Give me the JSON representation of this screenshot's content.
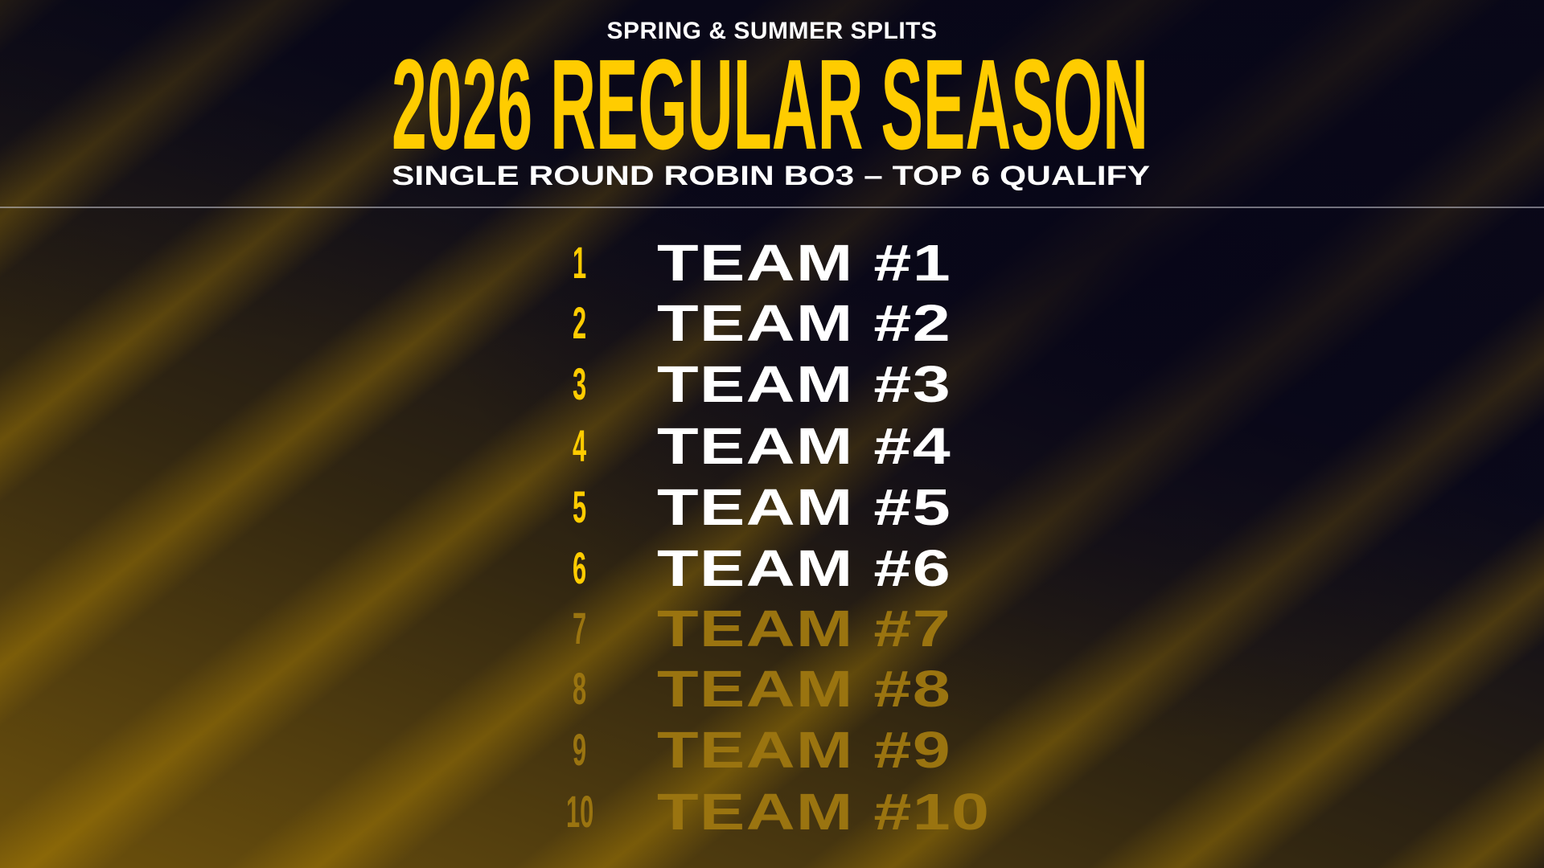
{
  "header": {
    "kicker": "SPRING & SUMMER SPLITS",
    "title": "2026 REGULAR SEASON",
    "subtitle": "SINGLE ROUND ROBIN BO3 – TOP 6 QUALIFY"
  },
  "colors": {
    "accent": "#FFCC00",
    "background": "#0B0A1A",
    "qualified_text": "#FFFFFF",
    "non_qualified_text": "#9A7410"
  },
  "standings": [
    {
      "rank": "1",
      "team": "TEAM #1",
      "qualified": true
    },
    {
      "rank": "2",
      "team": "TEAM #2",
      "qualified": true
    },
    {
      "rank": "3",
      "team": "TEAM #3",
      "qualified": true
    },
    {
      "rank": "4",
      "team": "TEAM #4",
      "qualified": true
    },
    {
      "rank": "5",
      "team": "TEAM #5",
      "qualified": true
    },
    {
      "rank": "6",
      "team": "TEAM #6",
      "qualified": true
    },
    {
      "rank": "7",
      "team": "TEAM #7",
      "qualified": false
    },
    {
      "rank": "8",
      "team": "TEAM #8",
      "qualified": false
    },
    {
      "rank": "9",
      "team": "TEAM #9",
      "qualified": false
    },
    {
      "rank": "10",
      "team": "TEAM #10",
      "qualified": false
    }
  ]
}
